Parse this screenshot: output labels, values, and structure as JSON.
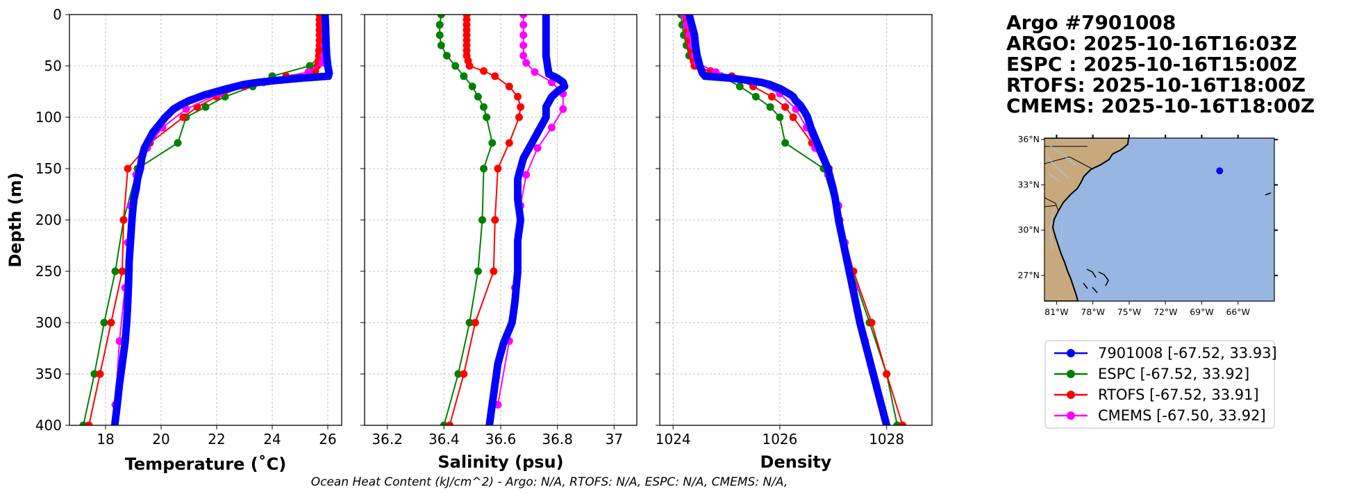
{
  "colors": {
    "argo": "#0000ff",
    "espc": "#008000",
    "rtofs": "#ff0000",
    "cmems": "#ff00ff",
    "ocean": "#97b6e1",
    "land": "#c8a97e",
    "rivers": "#a9c4e8",
    "grid": "#b0b0b0"
  },
  "info": {
    "lines": [
      "Argo #7901008",
      "ARGO: 2025-10-16T16:03Z",
      "ESPC : 2025-10-16T15:00Z",
      "RTOFS: 2025-10-16T18:00Z",
      "CMEMS: 2025-10-16T18:00Z"
    ]
  },
  "footer": "Ocean Heat Content (kJ/cm^2) - Argo: N/A,  RTOFS: N/A,  ESPC: N/A,  CMEMS: N/A,",
  "map": {
    "lon_range": [
      -82,
      -63
    ],
    "lat_range": [
      25.3,
      36.1
    ],
    "lon_ticks": [
      -81,
      -78,
      -75,
      -72,
      -69,
      -66
    ],
    "lon_tick_labels": [
      "81°W",
      "78°W",
      "75°W",
      "72°W",
      "69°W",
      "66°W"
    ],
    "lat_ticks": [
      27,
      30,
      33,
      36
    ],
    "lat_tick_labels": [
      "27°N",
      "30°N",
      "33°N",
      "36°N"
    ],
    "float_lon": -67.52,
    "float_lat": 33.93,
    "float_icon": "argo-float-marker"
  },
  "legend": [
    {
      "label": "7901008 [-67.52, 33.93]",
      "series": "argo"
    },
    {
      "label": "ESPC [-67.52, 33.92]",
      "series": "espc"
    },
    {
      "label": "RTOFS [-67.52, 33.91]",
      "series": "rtofs"
    },
    {
      "label": "CMEMS [-67.50, 33.92]",
      "series": "cmems"
    }
  ],
  "chart_data": [
    {
      "type": "line",
      "title": "",
      "xlabel": "Temperature (˚C)",
      "ylabel": "Depth (m)",
      "xlim": [
        16.7,
        26.5
      ],
      "ylim": [
        400,
        0
      ],
      "xticks": [
        18,
        20,
        22,
        24,
        26
      ],
      "yticks": [
        0,
        50,
        100,
        150,
        200,
        250,
        300,
        350,
        400
      ],
      "grid": true,
      "series": [
        {
          "name": "7901008",
          "key": "argo",
          "depth": [
            0,
            10,
            20,
            30,
            40,
            50,
            57,
            60,
            62,
            64,
            66,
            68,
            70,
            72,
            75,
            78,
            80,
            84,
            88,
            92,
            96,
            100,
            105,
            110,
            115,
            120,
            130,
            140,
            150,
            160,
            170,
            180,
            190,
            200,
            220,
            240,
            260,
            280,
            300,
            320,
            340,
            360,
            380,
            400
          ],
          "values": [
            25.9,
            25.92,
            25.93,
            25.94,
            25.96,
            26.0,
            26.05,
            26.02,
            25.0,
            24.2,
            23.5,
            23.0,
            22.7,
            22.4,
            22.0,
            21.6,
            21.4,
            21.0,
            20.7,
            20.45,
            20.3,
            20.15,
            20.0,
            19.85,
            19.7,
            19.6,
            19.4,
            19.3,
            19.25,
            19.15,
            19.1,
            19.02,
            18.98,
            18.95,
            18.9,
            18.85,
            18.83,
            18.8,
            18.76,
            18.7,
            18.6,
            18.5,
            18.42,
            18.33
          ]
        },
        {
          "name": "ESPC",
          "key": "espc",
          "depth": [
            0,
            10,
            20,
            30,
            40,
            50,
            60,
            70,
            80,
            90,
            100,
            125,
            150,
            200,
            250,
            300,
            350,
            400
          ],
          "values": [
            25.85,
            25.85,
            25.85,
            25.82,
            25.75,
            25.35,
            24.0,
            23.3,
            22.3,
            21.6,
            20.9,
            20.6,
            19.15,
            18.65,
            18.35,
            17.95,
            17.6,
            17.2
          ]
        },
        {
          "name": "RTOFS",
          "key": "rtofs",
          "depth": [
            0,
            5,
            10,
            15,
            20,
            25,
            30,
            35,
            40,
            45,
            50,
            55,
            60,
            70,
            80,
            90,
            100,
            125,
            150,
            200,
            250,
            300,
            350,
            400
          ],
          "values": [
            25.7,
            25.7,
            25.7,
            25.7,
            25.7,
            25.7,
            25.7,
            25.68,
            25.68,
            25.66,
            25.62,
            25.55,
            24.5,
            23.0,
            22.0,
            21.3,
            20.8,
            19.6,
            18.8,
            18.65,
            18.6,
            18.2,
            17.8,
            17.4
          ]
        },
        {
          "name": "CMEMS",
          "key": "cmems",
          "depth": [
            0,
            10,
            20,
            30,
            40,
            47,
            56,
            66,
            77,
            92,
            110,
            130,
            156,
            186,
            222,
            266,
            318,
            380
          ],
          "values": [
            25.9,
            25.9,
            25.9,
            25.88,
            25.85,
            25.8,
            25.3,
            23.7,
            22.1,
            20.9,
            20.05,
            19.5,
            19.1,
            18.9,
            18.8,
            18.7,
            18.5,
            18.35
          ]
        }
      ]
    },
    {
      "type": "line",
      "title": "",
      "xlabel": "Salinity (psu)",
      "ylabel": "",
      "xlim": [
        36.12,
        37.08
      ],
      "ylim": [
        400,
        0
      ],
      "xticks": [
        36.2,
        36.4,
        36.6,
        36.8,
        37.0
      ],
      "yticks": [
        0,
        50,
        100,
        150,
        200,
        250,
        300,
        350,
        400
      ],
      "grid": true,
      "series": [
        {
          "name": "7901008",
          "key": "argo",
          "depth": [
            0,
            10,
            20,
            30,
            40,
            50,
            58,
            62,
            66,
            70,
            75,
            80,
            90,
            100,
            110,
            120,
            130,
            140,
            150,
            160,
            180,
            200,
            220,
            250,
            280,
            300,
            320,
            340,
            360,
            380,
            400
          ],
          "values": [
            36.76,
            36.76,
            36.76,
            36.76,
            36.76,
            36.765,
            36.77,
            36.8,
            36.82,
            36.825,
            36.8,
            36.78,
            36.76,
            36.76,
            36.74,
            36.72,
            36.7,
            36.68,
            36.67,
            36.66,
            36.66,
            36.67,
            36.66,
            36.66,
            36.65,
            36.64,
            36.61,
            36.59,
            36.58,
            36.57,
            36.56
          ]
        },
        {
          "name": "ESPC",
          "key": "espc",
          "depth": [
            0,
            10,
            20,
            30,
            40,
            50,
            60,
            70,
            80,
            90,
            100,
            125,
            150,
            200,
            250,
            300,
            350,
            400
          ],
          "values": [
            36.39,
            36.385,
            36.385,
            36.39,
            36.41,
            36.44,
            36.47,
            36.5,
            36.52,
            36.54,
            36.55,
            36.57,
            36.54,
            36.535,
            36.52,
            36.49,
            36.45,
            36.4
          ]
        },
        {
          "name": "RTOFS",
          "key": "rtofs",
          "depth": [
            0,
            5,
            10,
            15,
            20,
            25,
            30,
            35,
            40,
            45,
            50,
            55,
            60,
            70,
            80,
            90,
            100,
            125,
            150,
            200,
            250,
            300,
            350,
            400
          ],
          "values": [
            36.48,
            36.48,
            36.48,
            36.48,
            36.48,
            36.48,
            36.48,
            36.48,
            36.48,
            36.485,
            36.49,
            36.54,
            36.58,
            36.63,
            36.66,
            36.67,
            36.665,
            36.63,
            36.59,
            36.58,
            36.575,
            36.51,
            36.47,
            36.42
          ]
        },
        {
          "name": "CMEMS",
          "key": "cmems",
          "depth": [
            0,
            10,
            20,
            30,
            40,
            47,
            56,
            66,
            77,
            92,
            110,
            130,
            156,
            186,
            222,
            266,
            318,
            380
          ],
          "values": [
            36.68,
            36.68,
            36.68,
            36.68,
            36.68,
            36.69,
            36.72,
            36.78,
            36.82,
            36.82,
            36.78,
            36.73,
            36.69,
            36.67,
            36.66,
            36.65,
            36.63,
            36.59
          ]
        }
      ]
    },
    {
      "type": "line",
      "title": "",
      "xlabel": "Density",
      "ylabel": "",
      "xlim": [
        1023.75,
        1028.85
      ],
      "ylim": [
        400,
        0
      ],
      "xticks": [
        1024,
        1026,
        1028
      ],
      "yticks": [
        0,
        50,
        100,
        150,
        200,
        250,
        300,
        350,
        400
      ],
      "grid": true,
      "series": [
        {
          "name": "7901008",
          "key": "argo",
          "depth": [
            0,
            10,
            20,
            30,
            40,
            50,
            57,
            60,
            62,
            64,
            66,
            68,
            70,
            72,
            75,
            78,
            80,
            84,
            88,
            92,
            96,
            100,
            105,
            110,
            115,
            120,
            130,
            140,
            150,
            160,
            170,
            180,
            190,
            200,
            220,
            240,
            260,
            280,
            300,
            320,
            340,
            360,
            380,
            400
          ],
          "values": [
            1024.3,
            1024.35,
            1024.4,
            1024.42,
            1024.45,
            1024.5,
            1024.55,
            1024.6,
            1025.1,
            1025.4,
            1025.65,
            1025.8,
            1025.9,
            1026.0,
            1026.1,
            1026.2,
            1026.25,
            1026.3,
            1026.38,
            1026.43,
            1026.48,
            1026.52,
            1026.55,
            1026.58,
            1026.62,
            1026.66,
            1026.74,
            1026.82,
            1026.9,
            1026.95,
            1027.0,
            1027.04,
            1027.07,
            1027.1,
            1027.18,
            1027.26,
            1027.34,
            1027.42,
            1027.5,
            1027.6,
            1027.7,
            1027.8,
            1027.9,
            1028.0
          ]
        },
        {
          "name": "ESPC",
          "key": "espc",
          "depth": [
            0,
            10,
            20,
            30,
            40,
            50,
            60,
            70,
            80,
            90,
            100,
            125,
            150,
            200,
            250,
            300,
            350,
            400
          ],
          "values": [
            1024.15,
            1024.17,
            1024.2,
            1024.25,
            1024.3,
            1024.42,
            1024.9,
            1025.25,
            1025.55,
            1025.82,
            1026.0,
            1026.1,
            1026.82,
            1027.1,
            1027.35,
            1027.68,
            1028.0,
            1028.2
          ]
        },
        {
          "name": "RTOFS",
          "key": "rtofs",
          "depth": [
            0,
            5,
            10,
            15,
            20,
            25,
            30,
            35,
            40,
            45,
            50,
            55,
            60,
            70,
            80,
            90,
            100,
            125,
            150,
            200,
            250,
            300,
            350,
            400
          ],
          "values": [
            1024.25,
            1024.25,
            1024.25,
            1024.27,
            1024.28,
            1024.3,
            1024.32,
            1024.34,
            1024.36,
            1024.38,
            1024.4,
            1024.7,
            1025.1,
            1025.5,
            1025.85,
            1026.1,
            1026.25,
            1026.6,
            1026.92,
            1027.12,
            1027.38,
            1027.72,
            1028.0,
            1028.3
          ]
        },
        {
          "name": "CMEMS",
          "key": "cmems",
          "depth": [
            0,
            10,
            20,
            30,
            40,
            47,
            56,
            66,
            77,
            92,
            110,
            130,
            156,
            186,
            222,
            266,
            318,
            380
          ],
          "values": [
            1024.2,
            1024.25,
            1024.3,
            1024.35,
            1024.4,
            1024.45,
            1024.8,
            1025.55,
            1026.0,
            1026.3,
            1026.5,
            1026.66,
            1026.9,
            1027.1,
            1027.22,
            1027.4,
            1027.6,
            1027.9
          ]
        }
      ]
    }
  ]
}
